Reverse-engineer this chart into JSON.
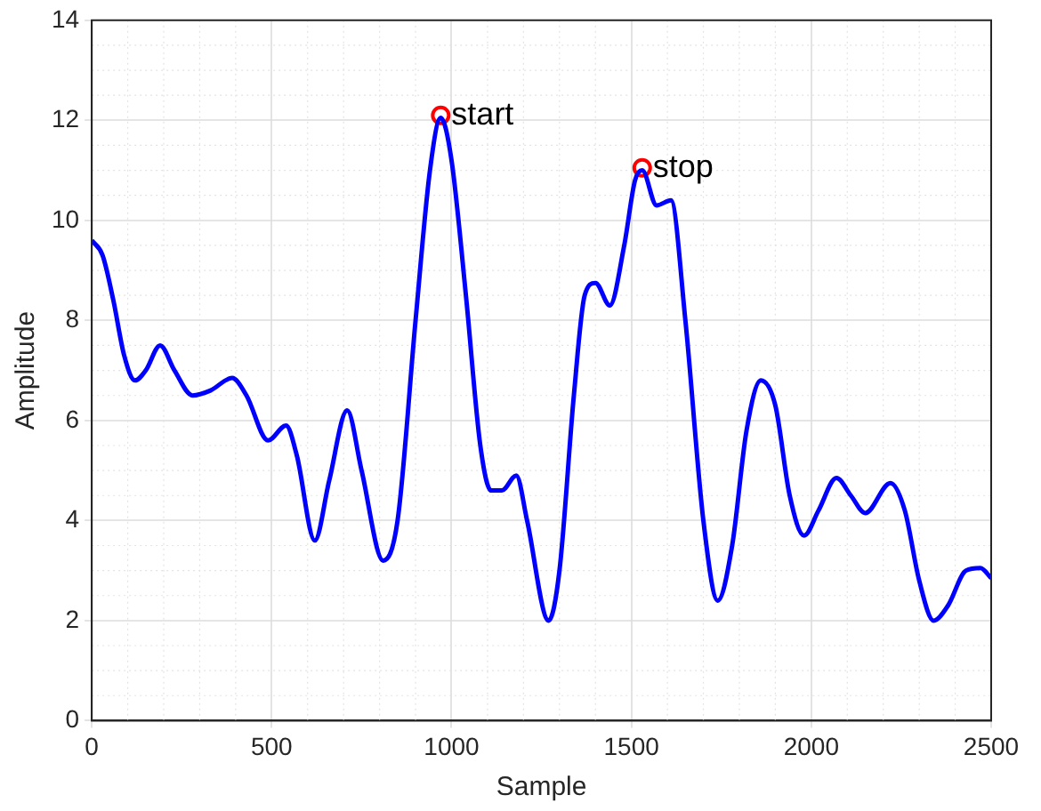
{
  "chart_data": {
    "type": "line",
    "xlabel": "Sample",
    "ylabel": "Amplitude",
    "xlim": [
      0,
      2500
    ],
    "xticks": [
      0,
      500,
      1000,
      1500,
      2000,
      2500
    ],
    "ylim": [
      0,
      14
    ],
    "yticks": [
      0,
      2,
      4,
      6,
      8,
      10,
      12,
      14
    ],
    "grid": true,
    "legend": false,
    "series": [
      {
        "color": "#0000ff",
        "marker": "none",
        "line_style": "solid",
        "x": [
          0,
          30,
          60,
          90,
          120,
          150,
          190,
          230,
          280,
          330,
          390,
          430,
          490,
          540,
          570,
          620,
          660,
          710,
          750,
          810,
          850,
          900,
          940,
          970,
          1000,
          1040,
          1080,
          1110,
          1140,
          1180,
          1210,
          1270,
          1300,
          1340,
          1370,
          1400,
          1440,
          1480,
          1510,
          1530,
          1570,
          1610,
          1650,
          1700,
          1740,
          1780,
          1820,
          1860,
          1900,
          1940,
          1980,
          2020,
          2070,
          2110,
          2150,
          2220,
          2260,
          2300,
          2340,
          2380,
          2430,
          2470,
          2500
        ],
        "values": [
          9.6,
          9.3,
          8.4,
          7.3,
          6.8,
          7.0,
          7.5,
          7.0,
          6.5,
          6.6,
          6.85,
          6.5,
          5.6,
          5.9,
          5.3,
          3.6,
          4.8,
          6.2,
          5.0,
          3.2,
          4.0,
          8.0,
          11.0,
          12.05,
          11.2,
          8.5,
          5.5,
          4.6,
          4.6,
          4.9,
          4.0,
          2.0,
          3.0,
          6.5,
          8.5,
          8.75,
          8.3,
          9.5,
          10.8,
          11.0,
          10.3,
          10.4,
          8.0,
          4.0,
          2.4,
          3.5,
          5.8,
          6.8,
          6.3,
          4.5,
          3.7,
          4.2,
          4.85,
          4.5,
          4.15,
          4.75,
          4.2,
          2.8,
          2.0,
          2.3,
          3.0,
          3.05,
          2.85
        ]
      },
      {
        "type": "scatter",
        "color": "#ff0000",
        "marker": "circle",
        "x": [
          970,
          1530
        ],
        "values": [
          12.1,
          11.05
        ]
      }
    ],
    "annotations": [
      {
        "text": "start",
        "x": 970,
        "y": 12.1
      },
      {
        "text": "stop",
        "x": 1530,
        "y": 11.05
      }
    ]
  }
}
